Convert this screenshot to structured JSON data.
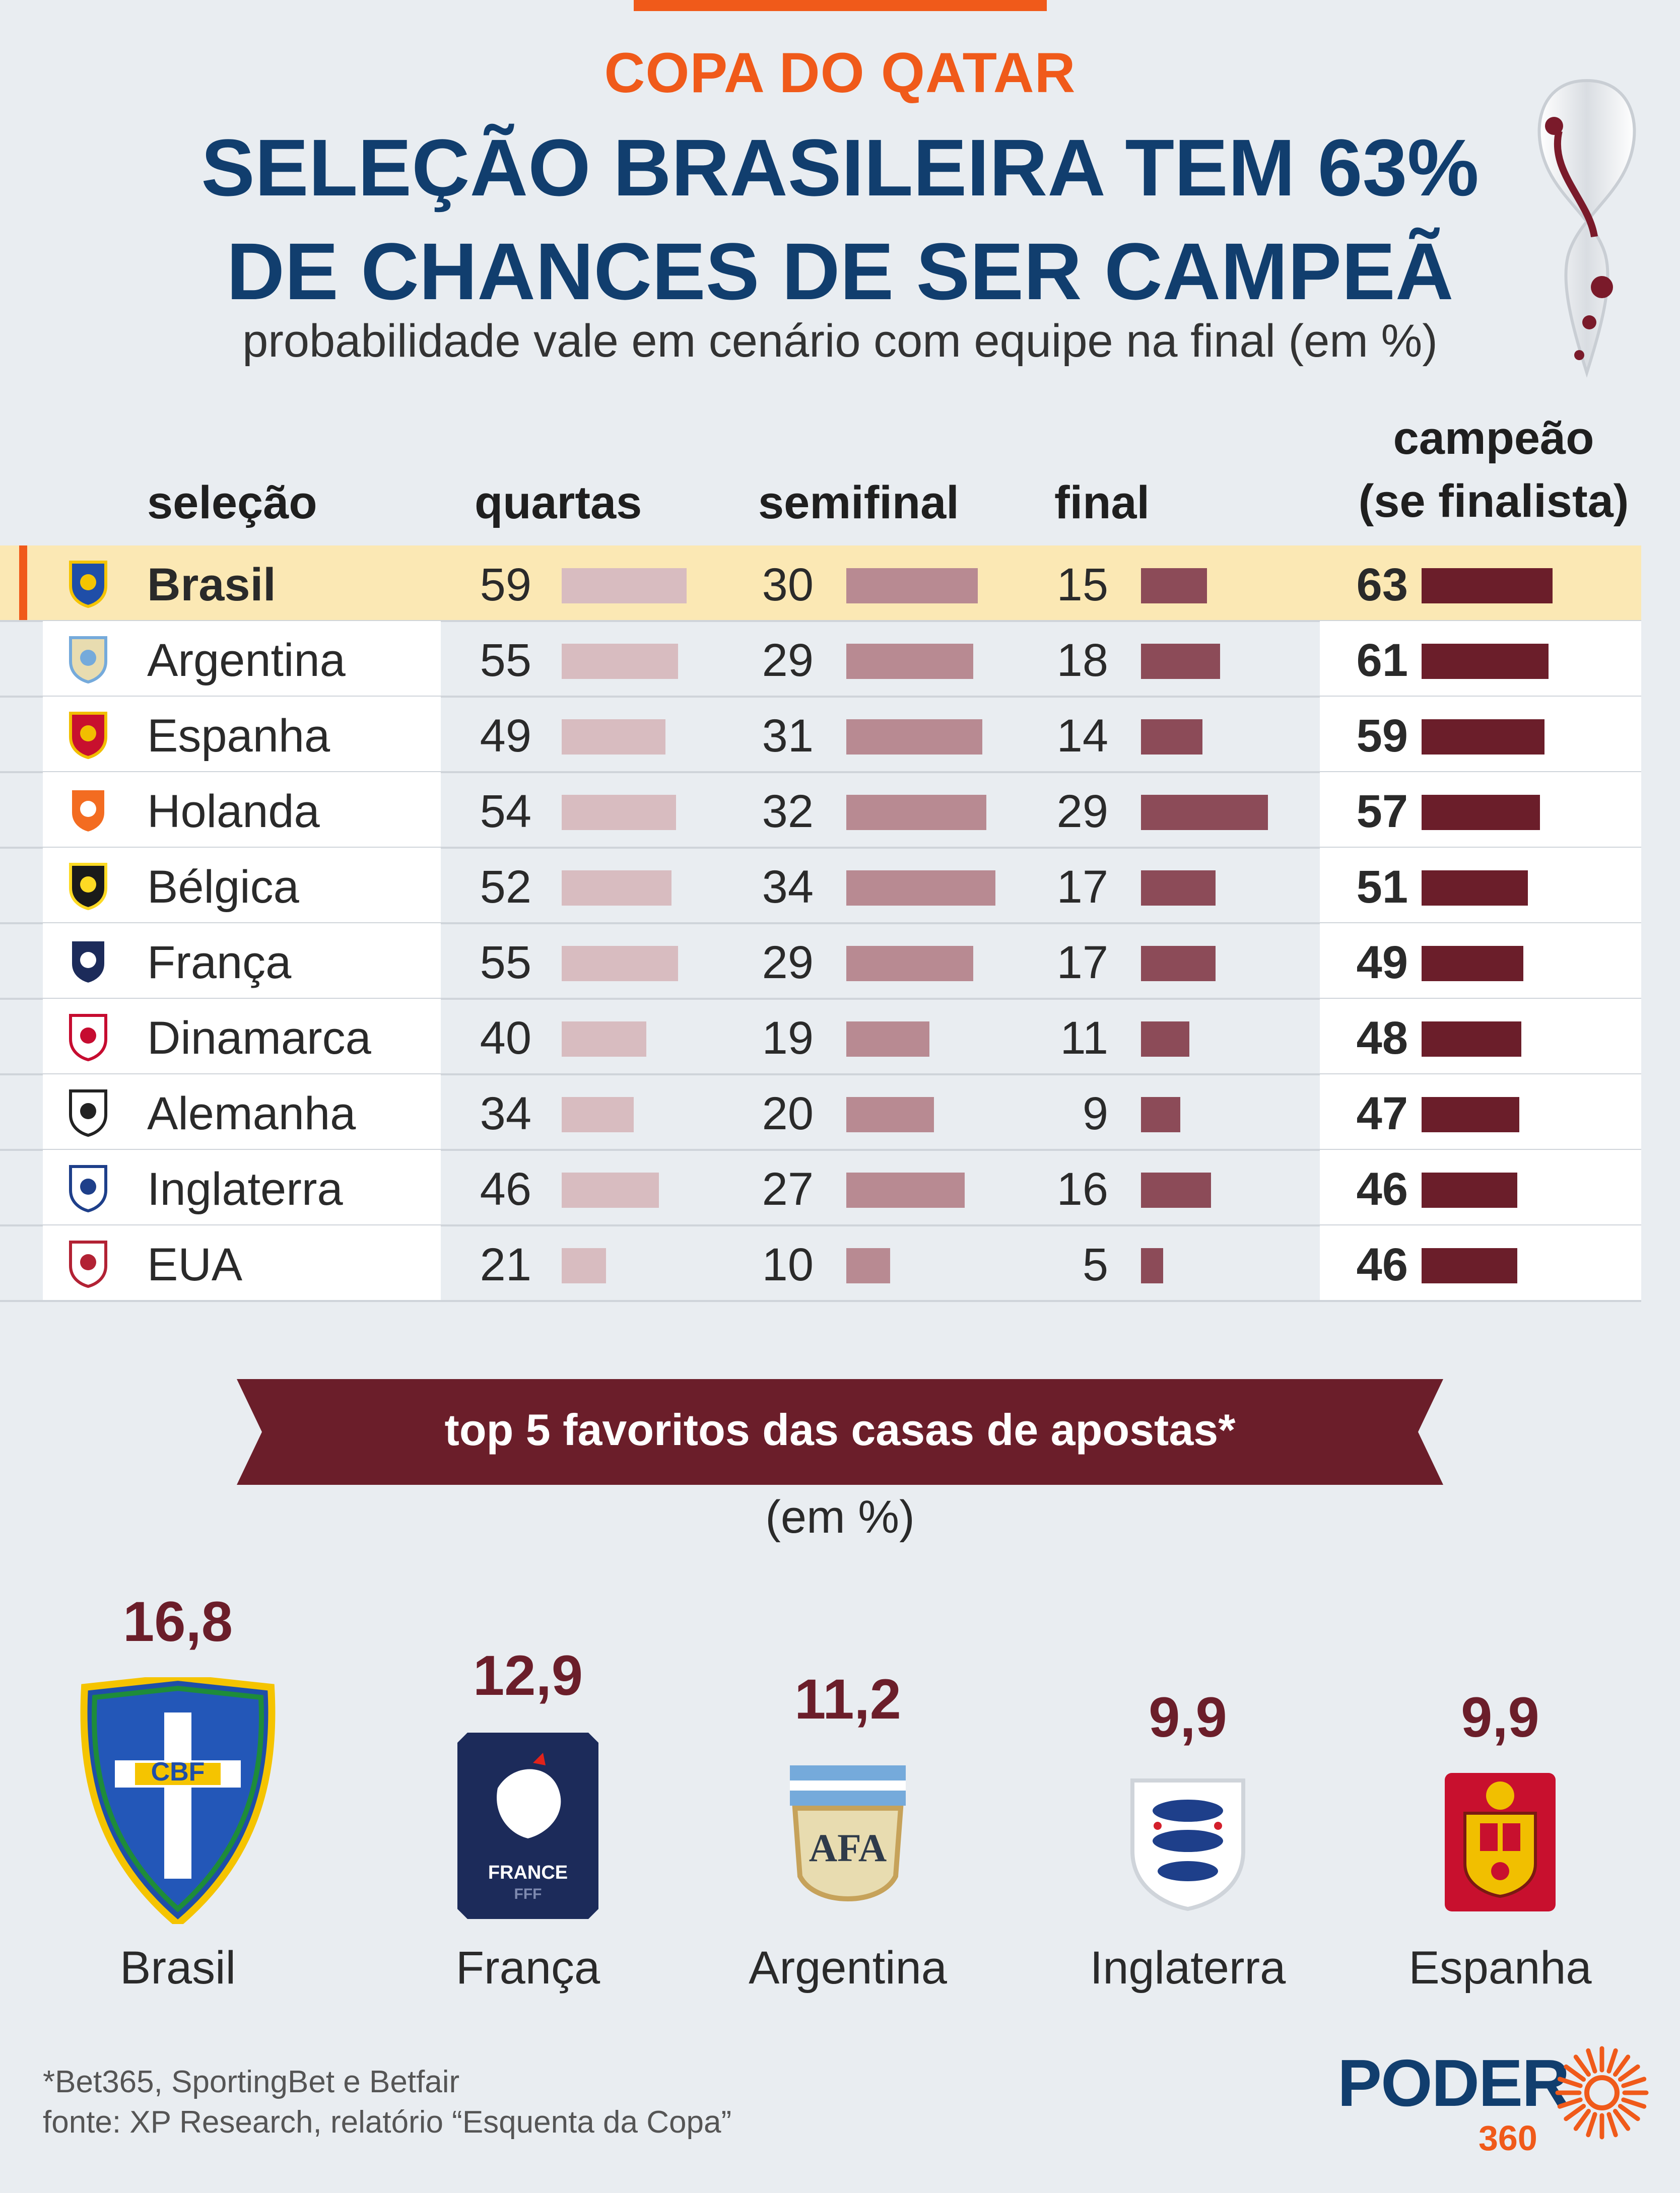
{
  "kicker": "COPA DO QATAR",
  "headline_line1": "SELEÇÃO BRASILEIRA TEM 63%",
  "headline_line2": "DE CHANCES DE SER CAMPEÃ",
  "subtitle": "probabilidade vale em cenário com equipe na final (em %)",
  "colors": {
    "accent": "#f05a1a",
    "navy": "#113e6e",
    "quartas": "#d8bcc0",
    "semifinal": "#b88a92",
    "final": "#8c4b58",
    "campeao": "#6b1e2a",
    "highlight": "#fbe8b4"
  },
  "table": {
    "headers": {
      "selecao": "seleção",
      "quartas": "quartas",
      "semifinal": "semifinal",
      "final": "final",
      "campeao_1": "campeão",
      "campeao_2": "(se finalista)"
    }
  },
  "chart_data": [
    {
      "type": "table",
      "columns": [
        "seleção",
        "quartas",
        "semifinal",
        "final",
        "campeão (se finalista)"
      ],
      "rows": [
        {
          "team": "Brasil",
          "crest": "cbf-crest-icon",
          "quartas": 59,
          "semifinal": 30,
          "final": 15,
          "campeao": 63,
          "highlight": true
        },
        {
          "team": "Argentina",
          "crest": "afa-crest-icon",
          "quartas": 55,
          "semifinal": 29,
          "final": 18,
          "campeao": 61
        },
        {
          "team": "Espanha",
          "crest": "rfef-crest-icon",
          "quartas": 49,
          "semifinal": 31,
          "final": 14,
          "campeao": 59
        },
        {
          "team": "Holanda",
          "crest": "knvb-lion-icon",
          "quartas": 54,
          "semifinal": 32,
          "final": 29,
          "campeao": 57
        },
        {
          "team": "Bélgica",
          "crest": "belgium-crest-icon",
          "quartas": 52,
          "semifinal": 34,
          "final": 17,
          "campeao": 51
        },
        {
          "team": "França",
          "crest": "fff-rooster-icon",
          "quartas": 55,
          "semifinal": 29,
          "final": 17,
          "campeao": 49
        },
        {
          "team": "Dinamarca",
          "crest": "dbu-crest-icon",
          "quartas": 40,
          "semifinal": 19,
          "final": 11,
          "campeao": 48
        },
        {
          "team": "Alemanha",
          "crest": "dfb-eagle-icon",
          "quartas": 34,
          "semifinal": 20,
          "final": 9,
          "campeao": 47
        },
        {
          "team": "Inglaterra",
          "crest": "three-lions-icon",
          "quartas": 46,
          "semifinal": 27,
          "final": 16,
          "campeao": 46
        },
        {
          "team": "EUA",
          "crest": "usa-crest-icon",
          "quartas": 21,
          "semifinal": 10,
          "final": 5,
          "campeao": 46
        }
      ]
    },
    {
      "type": "bar",
      "title": "top 5 favoritos das casas de apostas*",
      "unit": "(em %)",
      "categories": [
        "Brasil",
        "França",
        "Argentina",
        "Inglaterra",
        "Espanha"
      ],
      "values": [
        "16,8",
        "12,9",
        "11,2",
        "9,9",
        "9,9"
      ],
      "numeric_values": [
        16.8,
        12.9,
        11.2,
        9.9,
        9.9
      ]
    }
  ],
  "footer": {
    "note": "*Bet365, SportingBet e Betfair",
    "source": "fonte: XP Research, relatório “Esquenta da Copa”",
    "logo_text": "PODER",
    "logo_num": "360"
  }
}
